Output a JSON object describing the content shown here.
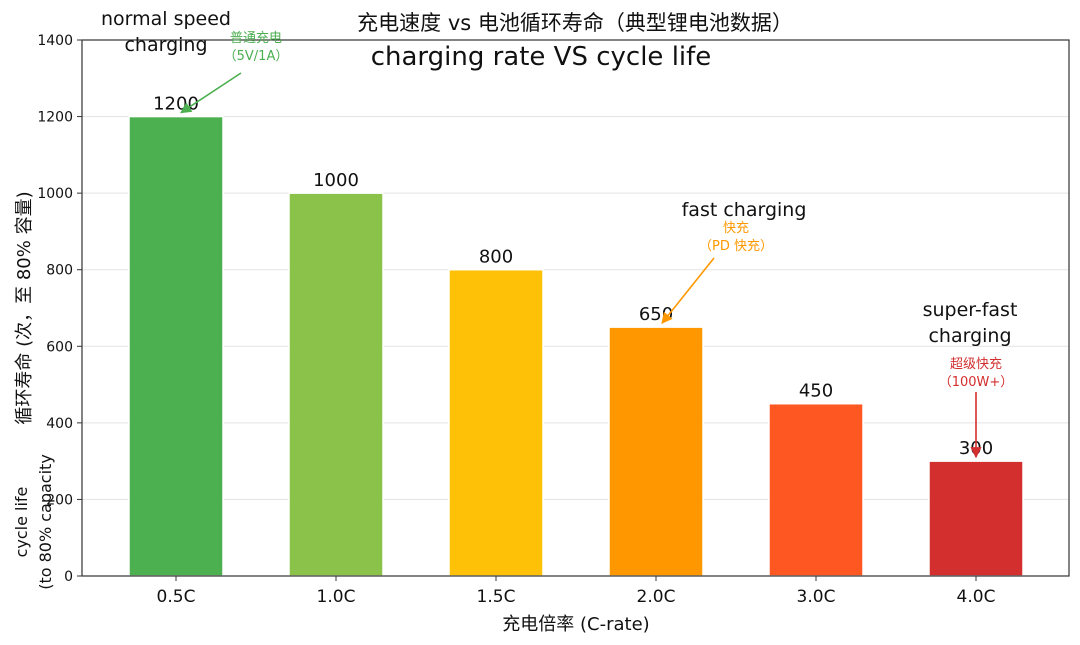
{
  "chart_data": {
    "type": "bar",
    "title": "充电速度 vs 电池循环寿命（典型锂电池数据）",
    "subtitle": "charging rate VS cycle life",
    "xlabel": "充电倍率 (C-rate)",
    "ylabel": "循环寿命 (次，至 80% 容量)",
    "ylabel_en": [
      "cycle life",
      "(to 80% capacity"
    ],
    "categories": [
      "0.5C",
      "1.0C",
      "1.5C",
      "2.0C",
      "3.0C",
      "4.0C"
    ],
    "values": [
      1200,
      1000,
      800,
      650,
      450,
      300
    ],
    "colors": [
      "#4caf50",
      "#8bc34a",
      "#ffc107",
      "#ff9800",
      "#ff5722",
      "#d32f2f"
    ],
    "ylim": [
      0,
      1400
    ],
    "yticks": [
      0,
      200,
      400,
      600,
      800,
      1000,
      1200,
      1400
    ],
    "grid": true,
    "annotations": [
      {
        "category": "0.5C",
        "value": 1200,
        "text_lines": [
          "普通充电",
          "（5V/1A）"
        ],
        "english_lines": [
          "normal speed",
          "charging"
        ],
        "color": "#4caf50"
      },
      {
        "category": "2.0C",
        "value": 650,
        "text_lines": [
          "快充",
          "（PD 快充）"
        ],
        "english_lines": [
          "fast charging"
        ],
        "color": "#ff9800"
      },
      {
        "category": "4.0C",
        "value": 300,
        "text_lines": [
          "超级快充",
          "（100W+）"
        ],
        "english_lines": [
          "super-fast",
          "charging"
        ],
        "color": "#d32f2f"
      }
    ]
  }
}
